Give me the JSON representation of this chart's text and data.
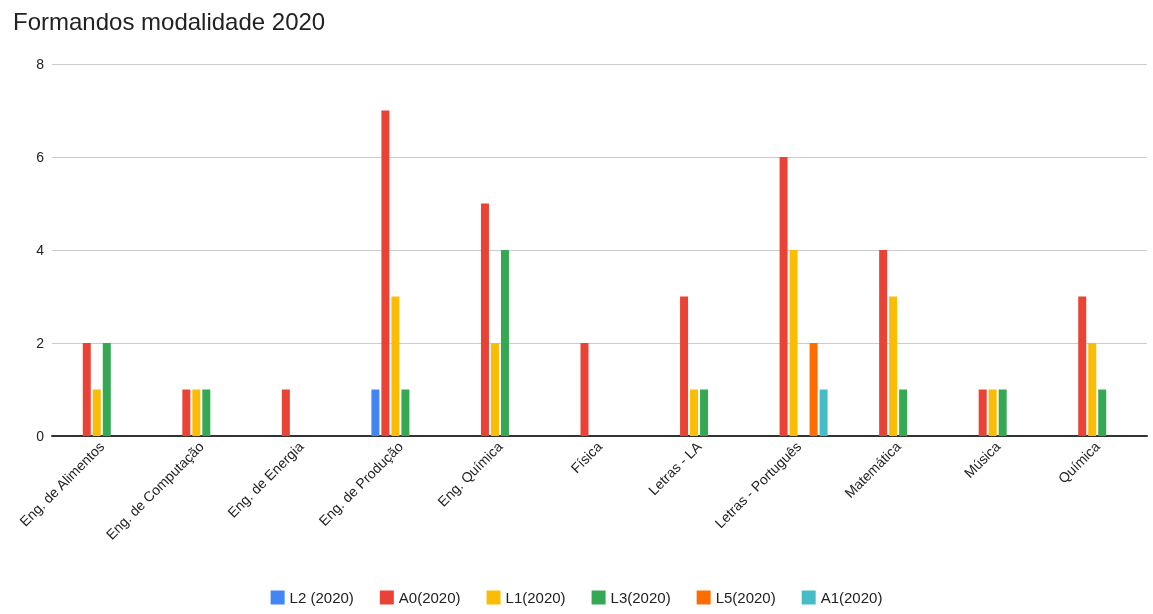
{
  "chart_data": {
    "type": "bar",
    "title": "Formandos modalidade 2020",
    "categories": [
      "Eng. de Alimentos",
      "Eng. de Computação",
      "Eng. de Energia",
      "Eng. de Produção",
      "Eng. Química",
      "Física",
      "Letras - LA",
      "Letras - Português",
      "Matemática",
      "Música",
      "Química"
    ],
    "series": [
      {
        "name": "L2 (2020)",
        "color": "#4285f4",
        "values": [
          null,
          null,
          null,
          1,
          null,
          null,
          null,
          null,
          null,
          null,
          null
        ]
      },
      {
        "name": "A0(2020)",
        "color": "#ea4335",
        "values": [
          2,
          1,
          1,
          7,
          5,
          2,
          3,
          6,
          4,
          1,
          3
        ]
      },
      {
        "name": "L1(2020)",
        "color": "#fbbc04",
        "values": [
          1,
          1,
          null,
          3,
          2,
          null,
          1,
          4,
          3,
          1,
          2
        ]
      },
      {
        "name": "L3(2020)",
        "color": "#34a853",
        "values": [
          2,
          1,
          null,
          1,
          4,
          null,
          1,
          null,
          1,
          1,
          1
        ]
      },
      {
        "name": "L5(2020)",
        "color": "#ff6d01",
        "values": [
          null,
          null,
          null,
          null,
          null,
          null,
          null,
          2,
          null,
          null,
          null
        ]
      },
      {
        "name": "A1(2020)",
        "color": "#46bdc6",
        "values": [
          null,
          null,
          null,
          null,
          null,
          null,
          null,
          1,
          null,
          null,
          null
        ]
      }
    ],
    "ylim": [
      0,
      8
    ],
    "yticks": [
      0,
      2,
      4,
      6,
      8
    ],
    "grid": "y",
    "legend": "bottom"
  }
}
